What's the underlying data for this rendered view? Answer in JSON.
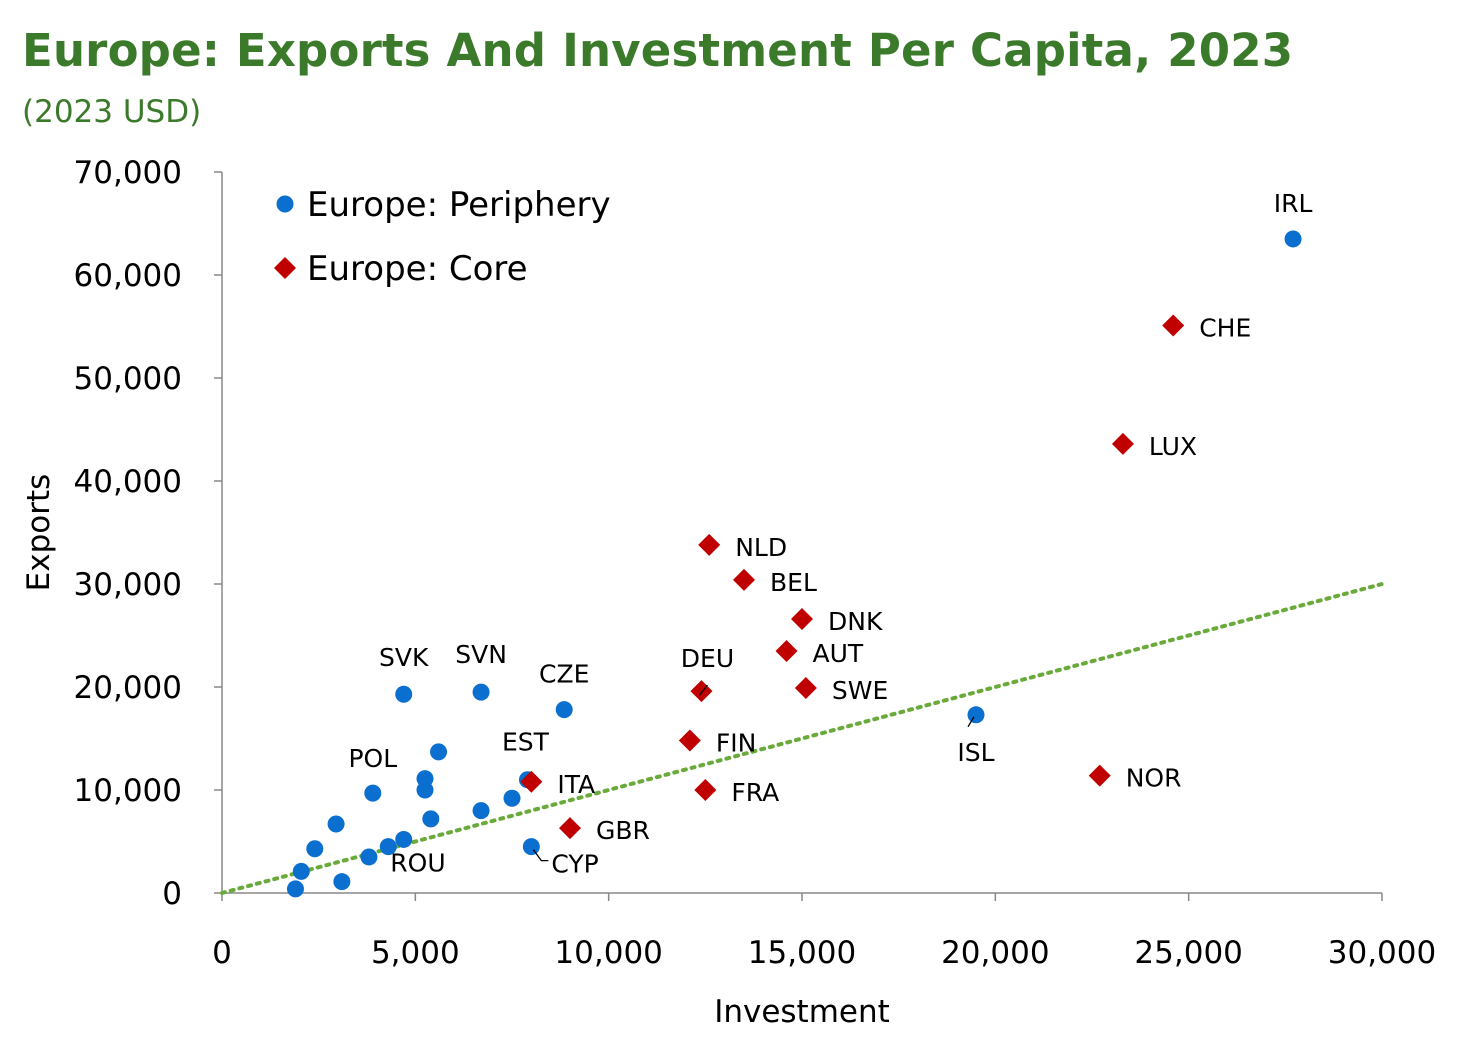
{
  "chart_data": {
    "type": "scatter",
    "title": "Europe: Exports And Investment Per Capita, 2023",
    "subtitle": "(2023 USD)",
    "xlabel": "Investment",
    "ylabel": "Exports",
    "xlim": [
      0,
      30000
    ],
    "ylim": [
      0,
      70000
    ],
    "xticks": [
      0,
      5000,
      10000,
      15000,
      20000,
      25000,
      30000
    ],
    "xtick_labels": [
      "0",
      "5,000",
      "10,000",
      "15,000",
      "20,000",
      "25,000",
      "30,000"
    ],
    "yticks": [
      0,
      10000,
      20000,
      30000,
      40000,
      50000,
      60000,
      70000
    ],
    "ytick_labels": [
      "0",
      "10,000",
      "20,000",
      "30,000",
      "40,000",
      "50,000",
      "60,000",
      "70,000"
    ],
    "legend_position": "top-left",
    "colors": {
      "periphery": "#0a6fcf",
      "core": "#c00000",
      "trendline": "#6aaa3a",
      "title": "#3a7a2a"
    },
    "trendline": {
      "style": "dotted",
      "x": [
        0,
        30000
      ],
      "y": [
        0,
        30000
      ]
    },
    "series": [
      {
        "name": "Europe: Periphery",
        "marker": "circle",
        "points": [
          {
            "label": "IRL",
            "x": 27700,
            "y": 63500
          },
          {
            "label": "ISL",
            "x": 19500,
            "y": 17300
          },
          {
            "label": "SVK",
            "x": 4700,
            "y": 19300
          },
          {
            "label": "SVN",
            "x": 6700,
            "y": 19500
          },
          {
            "label": "CZE",
            "x": 8850,
            "y": 17800
          },
          {
            "label": "EST",
            "x": 7900,
            "y": 11000
          },
          {
            "label": "POL",
            "x": 3900,
            "y": 9700
          },
          {
            "label": "ROU",
            "x": 4300,
            "y": 4500
          },
          {
            "label": "CYP",
            "x": 8000,
            "y": 4500
          },
          {
            "label": "",
            "x": 5600,
            "y": 13700
          },
          {
            "label": "",
            "x": 5250,
            "y": 11100
          },
          {
            "label": "",
            "x": 5250,
            "y": 10000
          },
          {
            "label": "",
            "x": 5400,
            "y": 7200
          },
          {
            "label": "",
            "x": 6700,
            "y": 8000
          },
          {
            "label": "",
            "x": 7500,
            "y": 9200
          },
          {
            "label": "",
            "x": 2950,
            "y": 6700
          },
          {
            "label": "",
            "x": 2400,
            "y": 4300
          },
          {
            "label": "",
            "x": 3800,
            "y": 3500
          },
          {
            "label": "",
            "x": 4700,
            "y": 5200
          },
          {
            "label": "",
            "x": 2050,
            "y": 2100
          },
          {
            "label": "",
            "x": 3100,
            "y": 1100
          },
          {
            "label": "",
            "x": 1900,
            "y": 400
          }
        ]
      },
      {
        "name": "Europe: Core",
        "marker": "diamond",
        "points": [
          {
            "label": "CHE",
            "x": 24600,
            "y": 55100
          },
          {
            "label": "LUX",
            "x": 23300,
            "y": 43600
          },
          {
            "label": "NLD",
            "x": 12600,
            "y": 33800
          },
          {
            "label": "BEL",
            "x": 13500,
            "y": 30400
          },
          {
            "label": "DNK",
            "x": 15000,
            "y": 26600
          },
          {
            "label": "AUT",
            "x": 14600,
            "y": 23500
          },
          {
            "label": "SWE",
            "x": 15100,
            "y": 19900
          },
          {
            "label": "DEU",
            "x": 12400,
            "y": 19600
          },
          {
            "label": "FIN",
            "x": 12100,
            "y": 14800
          },
          {
            "label": "FRA",
            "x": 12500,
            "y": 10000
          },
          {
            "label": "ITA",
            "x": 8000,
            "y": 10800
          },
          {
            "label": "GBR",
            "x": 9000,
            "y": 6300
          },
          {
            "label": "NOR",
            "x": 22700,
            "y": 11400
          }
        ]
      }
    ]
  }
}
